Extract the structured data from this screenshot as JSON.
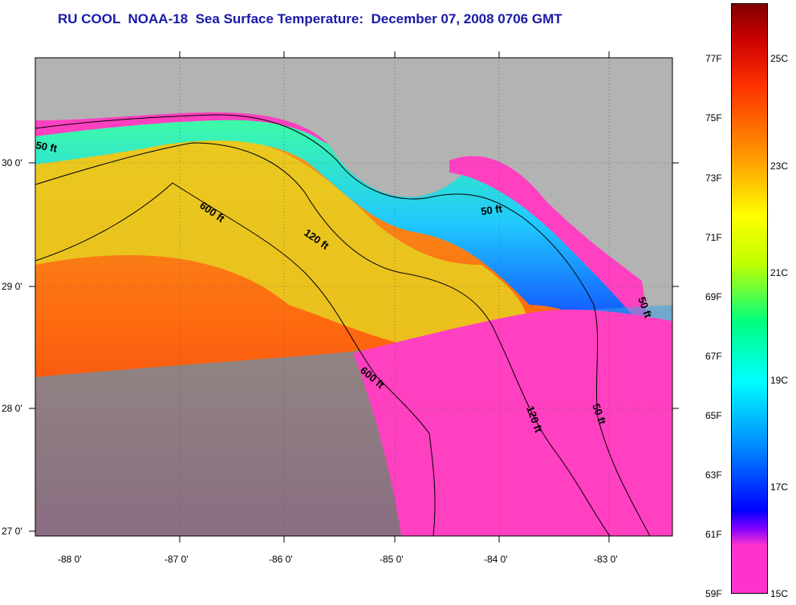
{
  "title": "RU COOL  NOAA-18  Sea Surface Temperature:  December 07, 2008 0706 GMT",
  "latitude_labels": [
    "30 0'",
    "29 0'",
    "28 0'",
    "27 0'"
  ],
  "longitude_labels": [
    "-88 0'",
    "-87 0'",
    "-86 0'",
    "-85 0'",
    "-84 0'",
    "-83 0'"
  ],
  "contour_labels": [
    "50 ft",
    "600 ft",
    "120 ft",
    "50 ft",
    "600 ft",
    "120 ft",
    "50 ft",
    "50 ft"
  ],
  "colorbar": {
    "fahrenheit": [
      "77F",
      "75F",
      "73F",
      "71F",
      "69F",
      "67F",
      "65F",
      "63F",
      "61F",
      "59F"
    ],
    "celsius": [
      "25C",
      "23C",
      "21C",
      "19C",
      "17C",
      "15C"
    ]
  },
  "colors": {
    "title": "#1a1aa6",
    "land": "#b3b3b3",
    "coastal_cold": "#ff40c0",
    "colorbar_stops": [
      "#ff33cc",
      "#8000ff",
      "#0000ff",
      "#0080ff",
      "#00ffff",
      "#00ff80",
      "#c0ff00",
      "#ffff00",
      "#ff9900",
      "#ff3300",
      "#cc0000",
      "#800000"
    ]
  }
}
